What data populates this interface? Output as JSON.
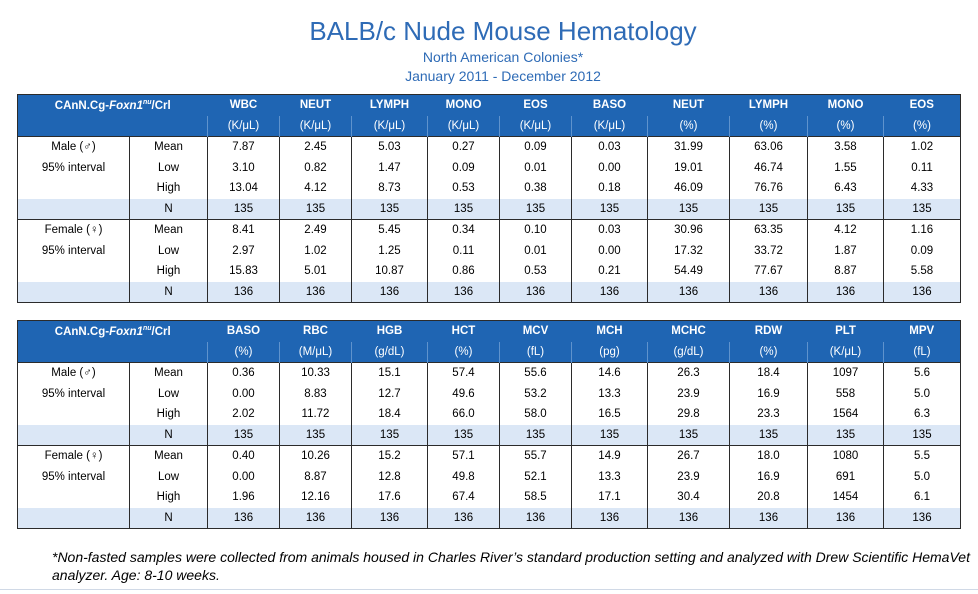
{
  "title": "BALB/c Nude Mouse Hematology",
  "subtitle": "North American Colonies*",
  "dates": "January 2011 - December 2012",
  "strain": {
    "prefix": "CAnN.Cg-",
    "gene": "Foxn1",
    "sup": "nu",
    "suffix": "/Crl"
  },
  "row_labels": {
    "male": "Male (♂)",
    "female": "Female (♀)",
    "interval": "95% interval",
    "stats": [
      "Mean",
      "Low",
      "High",
      "N"
    ]
  },
  "tables": [
    {
      "columns": [
        {
          "name": "WBC",
          "unit": "(K/μL)"
        },
        {
          "name": "NEUT",
          "unit": "(K/μL)"
        },
        {
          "name": "LYMPH",
          "unit": "(K/μL)"
        },
        {
          "name": "MONO",
          "unit": "(K/μL)"
        },
        {
          "name": "EOS",
          "unit": "(K/μL)"
        },
        {
          "name": "BASO",
          "unit": "(K/μL)"
        },
        {
          "name": "NEUT",
          "unit": "(%)"
        },
        {
          "name": "LYMPH",
          "unit": "(%)"
        },
        {
          "name": "MONO",
          "unit": "(%)"
        },
        {
          "name": "EOS",
          "unit": "(%)"
        }
      ],
      "male": [
        [
          "7.87",
          "2.45",
          "5.03",
          "0.27",
          "0.09",
          "0.03",
          "31.99",
          "63.06",
          "3.58",
          "1.02"
        ],
        [
          "3.10",
          "0.82",
          "1.47",
          "0.09",
          "0.01",
          "0.00",
          "19.01",
          "46.74",
          "1.55",
          "0.11"
        ],
        [
          "13.04",
          "4.12",
          "8.73",
          "0.53",
          "0.38",
          "0.18",
          "46.09",
          "76.76",
          "6.43",
          "4.33"
        ],
        [
          "135",
          "135",
          "135",
          "135",
          "135",
          "135",
          "135",
          "135",
          "135",
          "135"
        ]
      ],
      "female": [
        [
          "8.41",
          "2.49",
          "5.45",
          "0.34",
          "0.10",
          "0.03",
          "30.96",
          "63.35",
          "4.12",
          "1.16"
        ],
        [
          "2.97",
          "1.02",
          "1.25",
          "0.11",
          "0.01",
          "0.00",
          "17.32",
          "33.72",
          "1.87",
          "0.09"
        ],
        [
          "15.83",
          "5.01",
          "10.87",
          "0.86",
          "0.53",
          "0.21",
          "54.49",
          "77.67",
          "8.87",
          "5.58"
        ],
        [
          "136",
          "136",
          "136",
          "136",
          "136",
          "136",
          "136",
          "136",
          "136",
          "136"
        ]
      ]
    },
    {
      "columns": [
        {
          "name": "BASO",
          "unit": "(%)"
        },
        {
          "name": "RBC",
          "unit": "(M/μL)"
        },
        {
          "name": "HGB",
          "unit": "(g/dL)"
        },
        {
          "name": "HCT",
          "unit": "(%)"
        },
        {
          "name": "MCV",
          "unit": "(fL)"
        },
        {
          "name": "MCH",
          "unit": "(pg)"
        },
        {
          "name": "MCHC",
          "unit": "(g/dL)"
        },
        {
          "name": "RDW",
          "unit": "(%)"
        },
        {
          "name": "PLT",
          "unit": "(K/μL)"
        },
        {
          "name": "MPV",
          "unit": "(fL)"
        }
      ],
      "male": [
        [
          "0.36",
          "10.33",
          "15.1",
          "57.4",
          "55.6",
          "14.6",
          "26.3",
          "18.4",
          "1097",
          "5.6"
        ],
        [
          "0.00",
          "8.83",
          "12.7",
          "49.6",
          "53.2",
          "13.3",
          "23.9",
          "16.9",
          "558",
          "5.0"
        ],
        [
          "2.02",
          "11.72",
          "18.4",
          "66.0",
          "58.0",
          "16.5",
          "29.8",
          "23.3",
          "1564",
          "6.3"
        ],
        [
          "135",
          "135",
          "135",
          "135",
          "135",
          "135",
          "135",
          "135",
          "135",
          "135"
        ]
      ],
      "female": [
        [
          "0.40",
          "10.26",
          "15.2",
          "57.1",
          "55.7",
          "14.9",
          "26.7",
          "18.0",
          "1080",
          "5.5"
        ],
        [
          "0.00",
          "8.87",
          "12.8",
          "49.8",
          "52.1",
          "13.3",
          "23.9",
          "16.9",
          "691",
          "5.0"
        ],
        [
          "1.96",
          "12.16",
          "17.6",
          "67.4",
          "58.5",
          "17.1",
          "30.4",
          "20.8",
          "1454",
          "6.1"
        ],
        [
          "136",
          "136",
          "136",
          "136",
          "136",
          "136",
          "136",
          "136",
          "136",
          "136"
        ]
      ]
    }
  ],
  "footnote": "*Non-fasted samples were collected from animals housed in Charles River’s standard production setting and analyzed with Drew Scientific HemaVet analyzer. Age: 8-10 weeks.",
  "colors": {
    "header_blue": "#1f65b3",
    "title_blue": "#2e6bb6",
    "n_row_shade": "#dbe7f6"
  }
}
